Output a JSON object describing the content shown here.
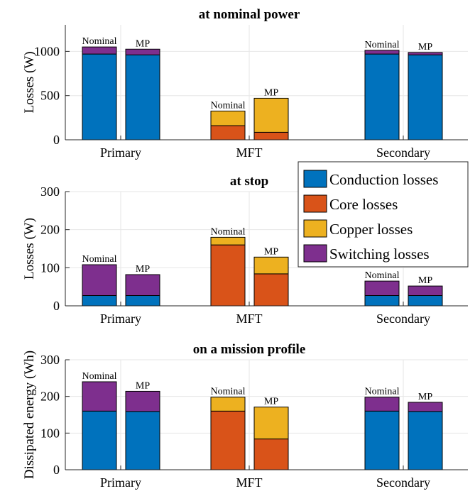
{
  "colors": {
    "conduction": "#0072BD",
    "core": "#D95319",
    "copper": "#EDB120",
    "switching": "#7E2F8E"
  },
  "legend": {
    "placement": "right, between top and middle subplots",
    "items": [
      {
        "key": "conduction",
        "label": "Conduction losses"
      },
      {
        "key": "core",
        "label": "Core losses"
      },
      {
        "key": "copper",
        "label": "Copper losses"
      },
      {
        "key": "switching",
        "label": "Switching losses"
      }
    ]
  },
  "chart_data": [
    {
      "type": "bar",
      "stacked": true,
      "title": "at nominal power",
      "ylabel": "Losses (W)",
      "ylim": [
        0,
        1300
      ],
      "yticks": [
        0,
        500,
        1000
      ],
      "grid": true,
      "categories": [
        "Primary",
        "MFT",
        "Secondary"
      ],
      "bar_labels": [
        "Nominal",
        "MP"
      ],
      "bars": [
        {
          "category": "Primary",
          "label": "Nominal",
          "segments": {
            "conduction": 970,
            "switching": 80
          }
        },
        {
          "category": "Primary",
          "label": "MP",
          "segments": {
            "conduction": 960,
            "switching": 65
          }
        },
        {
          "category": "MFT",
          "label": "Nominal",
          "segments": {
            "core": 160,
            "copper": 165
          }
        },
        {
          "category": "MFT",
          "label": "MP",
          "segments": {
            "core": 85,
            "copper": 385
          }
        },
        {
          "category": "Secondary",
          "label": "Nominal",
          "segments": {
            "conduction": 970,
            "switching": 42
          }
        },
        {
          "category": "Secondary",
          "label": "MP",
          "segments": {
            "conduction": 960,
            "switching": 28
          }
        }
      ]
    },
    {
      "type": "bar",
      "stacked": true,
      "title": "at stop",
      "ylabel": "Losses (W)",
      "ylim": [
        0,
        300
      ],
      "yticks": [
        0,
        100,
        200,
        300
      ],
      "grid": true,
      "categories": [
        "Primary",
        "MFT",
        "Secondary"
      ],
      "bar_labels": [
        "Nominal",
        "MP"
      ],
      "bars": [
        {
          "category": "Primary",
          "label": "Nominal",
          "segments": {
            "conduction": 27,
            "switching": 81
          }
        },
        {
          "category": "Primary",
          "label": "MP",
          "segments": {
            "conduction": 27,
            "switching": 55
          }
        },
        {
          "category": "MFT",
          "label": "Nominal",
          "segments": {
            "core": 160,
            "copper": 20
          }
        },
        {
          "category": "MFT",
          "label": "MP",
          "segments": {
            "core": 84,
            "copper": 44
          }
        },
        {
          "category": "Secondary",
          "label": "Nominal",
          "segments": {
            "conduction": 27,
            "switching": 38
          }
        },
        {
          "category": "Secondary",
          "label": "MP",
          "segments": {
            "conduction": 27,
            "switching": 25
          }
        }
      ]
    },
    {
      "type": "bar",
      "stacked": true,
      "title": "on a mission profile",
      "ylabel": "Dissipated energy (Wh)",
      "ylim": [
        0,
        300
      ],
      "yticks": [
        0,
        100,
        200,
        300
      ],
      "grid": true,
      "categories": [
        "Primary",
        "MFT",
        "Secondary"
      ],
      "bar_labels": [
        "Nominal",
        "MP"
      ],
      "bars": [
        {
          "category": "Primary",
          "label": "Nominal",
          "segments": {
            "conduction": 160,
            "switching": 80
          }
        },
        {
          "category": "Primary",
          "label": "MP",
          "segments": {
            "conduction": 159,
            "switching": 55
          }
        },
        {
          "category": "MFT",
          "label": "Nominal",
          "segments": {
            "core": 160,
            "copper": 38
          }
        },
        {
          "category": "MFT",
          "label": "MP",
          "segments": {
            "core": 84,
            "copper": 87
          }
        },
        {
          "category": "Secondary",
          "label": "Nominal",
          "segments": {
            "conduction": 160,
            "switching": 38
          }
        },
        {
          "category": "Secondary",
          "label": "MP",
          "segments": {
            "conduction": 159,
            "switching": 25
          }
        }
      ]
    }
  ]
}
